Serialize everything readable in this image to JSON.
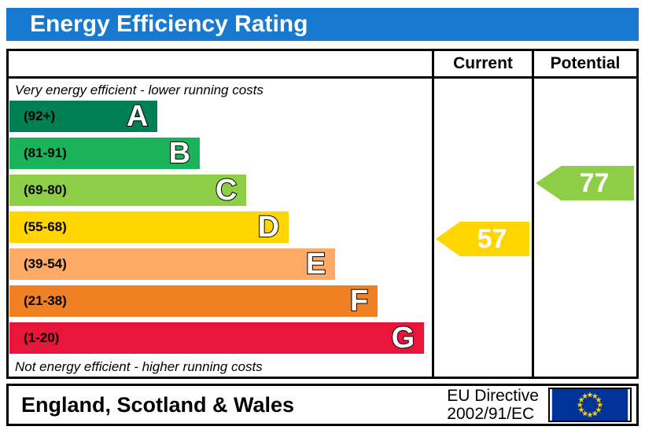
{
  "title": "Energy Efficiency Rating",
  "title_bar_color": "#1879d0",
  "table": {
    "columns": {
      "current": "Current",
      "potential": "Potential"
    },
    "top_note": "Very energy efficient - lower running costs",
    "bottom_note": "Not energy efficient - higher running costs"
  },
  "chart_data": {
    "type": "bar",
    "subtype": "epc-energy-efficiency-rating",
    "title": "Energy Efficiency Rating",
    "bands": [
      {
        "letter": "A",
        "range": "(92+)",
        "min": 92,
        "max": 100,
        "color": "#008054",
        "width_pct": 35
      },
      {
        "letter": "B",
        "range": "(81-91)",
        "min": 81,
        "max": 91,
        "color": "#19b459",
        "width_pct": 45
      },
      {
        "letter": "C",
        "range": "(69-80)",
        "min": 69,
        "max": 80,
        "color": "#8dce46",
        "width_pct": 56
      },
      {
        "letter": "D",
        "range": "(55-68)",
        "min": 55,
        "max": 68,
        "color": "#ffd500",
        "width_pct": 66
      },
      {
        "letter": "E",
        "range": "(39-54)",
        "min": 39,
        "max": 54,
        "color": "#fcaa65",
        "width_pct": 77
      },
      {
        "letter": "F",
        "range": "(21-38)",
        "min": 21,
        "max": 38,
        "color": "#ef8023",
        "width_pct": 87
      },
      {
        "letter": "G",
        "range": "(1-20)",
        "min": 1,
        "max": 20,
        "color": "#e9153b",
        "width_pct": 98
      }
    ],
    "current": {
      "value": "57",
      "band": "D",
      "color": "#ffd500"
    },
    "potential": {
      "value": "77",
      "band": "C",
      "color": "#8dce46"
    }
  },
  "footer": {
    "region": "England, Scotland & Wales",
    "directive_line1": "EU Directive",
    "directive_line2": "2002/91/EC",
    "eu_flag": {
      "field_color": "#003399",
      "star_color": "#ffcc00",
      "star_count": 12
    }
  }
}
